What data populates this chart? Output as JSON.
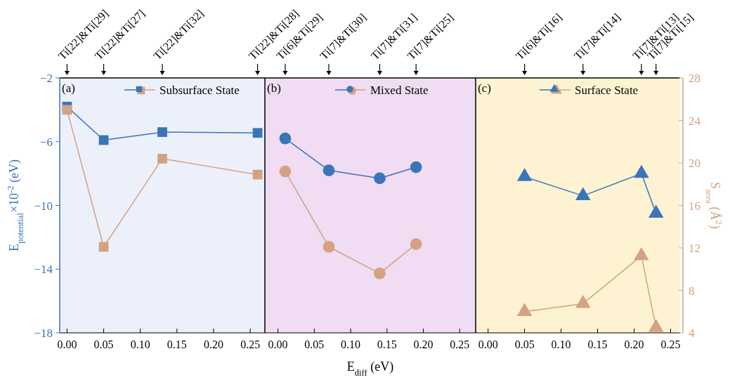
{
  "chart_data": [
    {
      "type": "line",
      "title": "(a)",
      "marker": "square",
      "legend": "top right",
      "tick_labels": "xy",
      "ylabel": "E$_{potential}$×10$^{-2}$ (eV)",
      "annotations": [
        "Ti[22]&Ti[29]",
        "Ti[22]&Ti[27]",
        "Ti[22]&Ti[32]",
        "Ti[22]&Ti[28]"
      ],
      "x": [
        0,
        0.05,
        0.13,
        0.26
      ],
      "xlim": [
        -0.01,
        0.27
      ],
      "xticks": [
        {
          "value": 0,
          "label": "0.00"
        },
        0.05,
        {
          "value": 0.1,
          "label": "0.10"
        },
        0.15,
        {
          "value": 0.2,
          "label": "0.20"
        },
        0.25
      ],
      "ylim": [
        -18,
        -2
      ],
      "yticks": [
        -18,
        -14,
        -10,
        -6,
        -2
      ],
      "y2lim": [
        4,
        28
      ],
      "series": [
        {
          "name": "Subsurface State",
          "color": "#3a75b8",
          "values": [
            -3.8,
            -5.9,
            -5.4,
            -5.45
          ]
        },
        {
          "color": "#d4a282",
          "axis": "y2",
          "values": [
            25.0,
            12.1,
            20.4,
            18.9
          ]
        }
      ]
    },
    {
      "type": "line",
      "title": "(b)",
      "marker": "circle",
      "legend": "top right",
      "tick_labels": "x",
      "xlabel": "E$_{diff}$ (eV)",
      "annotations": [
        "Ti[6]&Ti[29]",
        "Ti[7]&Ti[30]",
        "Ti[7]&Ti[31]",
        "Ti[7]&Ti[25]"
      ],
      "x": [
        0.01,
        0.07,
        0.14,
        0.19
      ],
      "xlim": [
        -0.018,
        0.272
      ],
      "xticks": [
        {
          "value": 0,
          "label": "0.00"
        },
        0.05,
        {
          "value": 0.1,
          "label": "0.10"
        },
        0.15,
        {
          "value": 0.2,
          "label": "0.20"
        },
        0.25
      ],
      "ylim": [
        -18,
        -2
      ],
      "y2lim": [
        4,
        28
      ],
      "series": [
        {
          "name": "Mixed State",
          "color": "#3a75b8",
          "values": [
            -5.8,
            -7.8,
            -8.3,
            -7.6
          ]
        },
        {
          "color": "#d4a282",
          "axis": "y2",
          "values": [
            19.2,
            12.1,
            9.6,
            12.35
          ]
        }
      ]
    },
    {
      "type": "line",
      "title": "(c)",
      "marker": "triangle",
      "legend": "top right",
      "tick_labels": "xy2",
      "y2label": "S$_{area}$ (Å$^{2}$)",
      "annotations": [
        "Ti[6]&Ti[16]",
        "Ti[7]&Ti[14]",
        "Ti[7]&Ti[13]",
        "Ti[7]&Ti[15]"
      ],
      "x": [
        0.05,
        0.13,
        0.21,
        0.23
      ],
      "xlim": [
        -0.017,
        0.263
      ],
      "xticks": [
        {
          "value": 0,
          "label": "0.00"
        },
        0.05,
        {
          "value": 0.1,
          "label": "0.10"
        },
        0.15,
        {
          "value": 0.2,
          "label": "0.20"
        },
        0.25
      ],
      "ylim": [
        -18,
        -2
      ],
      "y2lim": [
        4,
        28
      ],
      "y2ticks": [
        4,
        8,
        12,
        16,
        20,
        24,
        28
      ],
      "series": [
        {
          "name": "Surface State",
          "color": "#3a75b8",
          "values": [
            -8.2,
            -9.4,
            -8.0,
            -10.5
          ]
        },
        {
          "color": "#d4a282",
          "axis": "y2",
          "values": [
            6.0,
            6.75,
            11.25,
            4.5
          ]
        }
      ]
    }
  ]
}
